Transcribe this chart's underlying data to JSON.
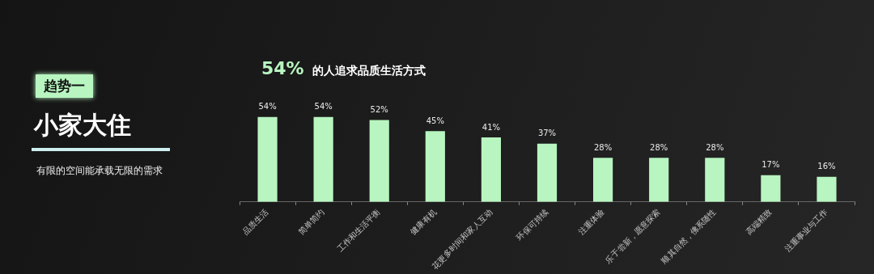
{
  "chart_data": {
    "type": "bar",
    "title": "54% 的人追求品质生活方式",
    "categories": [
      "品质生活",
      "简单简约",
      "工作和生活平衡",
      "健康有机",
      "花更多时间和家人互动",
      "环保可持续",
      "注重体验",
      "乐于尝新，愿意探索",
      "顺其自然，佛系随性",
      "高端精致",
      "注重事业与工作"
    ],
    "values": [
      54,
      54,
      52,
      45,
      41,
      37,
      28,
      28,
      28,
      17,
      16
    ],
    "value_labels": [
      "54%",
      "54%",
      "52%",
      "45%",
      "41%",
      "37%",
      "28%",
      "28%",
      "28%",
      "17%",
      "16%"
    ],
    "color": "#b8f5c0",
    "tick_labels": "x",
    "grid": false,
    "legend": false,
    "annotations": [
      "趋势一",
      "小家大住",
      "有限的空间能承载无限的需求"
    ]
  }
}
